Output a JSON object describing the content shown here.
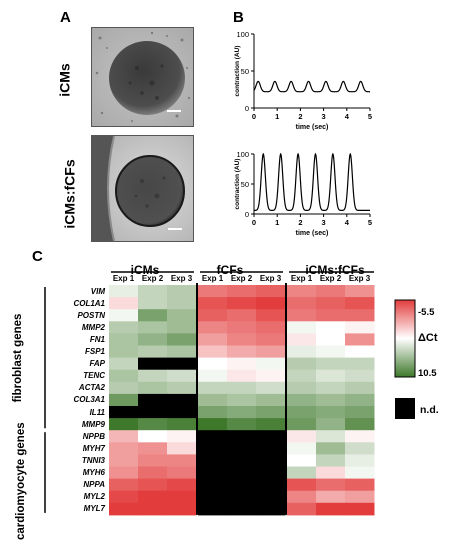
{
  "panel_a": {
    "letter": "A",
    "images": [
      {
        "label": "iCMs"
      },
      {
        "label": "iCMs:fCFs"
      }
    ]
  },
  "panel_b": {
    "letter": "B"
  },
  "panel_c": {
    "letter": "C"
  },
  "chart_data": [
    {
      "type": "line",
      "title": "",
      "xlabel": "time (sec)",
      "ylabel": "contraction (AU)",
      "xlim": [
        0,
        5
      ],
      "ylim": [
        0,
        100
      ],
      "xticks": [
        "0",
        "1",
        "2",
        "3",
        "4",
        "5"
      ],
      "yticks": [
        "0",
        "50",
        "100"
      ],
      "baseline": 22,
      "peak": 36,
      "peak_times": [
        0.18,
        0.9,
        1.6,
        2.35,
        3.1,
        3.85,
        4.6
      ]
    },
    {
      "type": "line",
      "title": "",
      "xlabel": "time (sec)",
      "ylabel": "contraction (AU)",
      "xlim": [
        0,
        5
      ],
      "ylim": [
        0,
        100
      ],
      "xticks": [
        "0",
        "1",
        "2",
        "3",
        "4",
        "5"
      ],
      "yticks": [
        "0",
        "50",
        "100"
      ],
      "baseline": 6,
      "peak": 100,
      "peak_times": [
        0.4,
        1.15,
        1.9,
        2.65,
        3.4,
        4.15
      ]
    },
    {
      "type": "heatmap",
      "title": "",
      "column_groups": [
        "iCMs",
        "fCFs",
        "iCMs:fCFs"
      ],
      "columns": [
        "Exp 1",
        "Exp 2",
        "Exp 3",
        "Exp 1",
        "Exp 2",
        "Exp 3",
        "Exp 1",
        "Exp 2",
        "Exp 3"
      ],
      "row_groups": [
        {
          "name": "fibroblast genes",
          "rows": 12
        },
        {
          "name": "cardiomyocyte genes",
          "rows": 7
        }
      ],
      "rows": [
        "VIM",
        "COL1A1",
        "POSTN",
        "MMP2",
        "FN1",
        "FSP1",
        "FAP",
        "TENC",
        "ACTA2",
        "COL3A1",
        "IL11",
        "MMP9",
        "NPPB",
        "MYH7",
        "TNNI3",
        "MYH6",
        "NPPA",
        "MYL2",
        "MYL7"
      ],
      "value_label": "ΔCt",
      "color_range": [
        -5.5,
        10.5
      ],
      "color_min_label": "-5.5",
      "color_max_label": "10.5",
      "nd_label": "n.d.",
      "values": [
        [
          3.5,
          5.0,
          5.5,
          -3.0,
          -3.5,
          -4.0,
          -2.5,
          -3.0,
          -2.0
        ],
        [
          1.0,
          5.0,
          5.5,
          -4.5,
          -5.0,
          -5.5,
          -3.5,
          -4.0,
          -4.5
        ],
        [
          3.0,
          8.0,
          6.5,
          -4.0,
          -3.5,
          -4.5,
          -3.0,
          -3.5,
          -3.5
        ],
        [
          5.5,
          6.0,
          6.5,
          -2.5,
          -3.0,
          -3.5,
          3.0,
          2.5,
          2.0
        ],
        [
          6.0,
          7.0,
          8.0,
          -1.5,
          -2.5,
          -3.0,
          1.5,
          2.5,
          -2.0
        ],
        [
          6.0,
          5.5,
          6.0,
          0.0,
          -1.0,
          -1.5,
          3.5,
          3.0,
          2.5
        ],
        [
          5.0,
          null,
          null,
          2.5,
          2.0,
          3.0,
          5.5,
          5.0,
          5.0
        ],
        [
          6.0,
          5.0,
          4.5,
          3.0,
          1.5,
          2.0,
          5.0,
          4.0,
          4.5
        ],
        [
          5.5,
          6.0,
          5.5,
          5.0,
          5.0,
          4.5,
          5.5,
          5.0,
          5.5
        ],
        [
          8.5,
          null,
          null,
          6.5,
          6.0,
          6.5,
          7.0,
          6.5,
          7.0
        ],
        [
          null,
          null,
          null,
          8.0,
          7.5,
          8.0,
          8.0,
          7.5,
          8.0
        ],
        [
          10.5,
          9.5,
          10.0,
          10.5,
          9.5,
          10.0,
          8.5,
          7.0,
          9.0
        ],
        [
          -0.5,
          2.5,
          2.0,
          null,
          null,
          null,
          1.5,
          4.0,
          2.0
        ],
        [
          -1.5,
          -2.0,
          1.0,
          null,
          null,
          null,
          3.0,
          6.5,
          4.5
        ],
        [
          -1.5,
          -2.5,
          -2.5,
          null,
          null,
          null,
          2.5,
          5.0,
          3.5
        ],
        [
          -2.0,
          -3.5,
          -3.0,
          null,
          null,
          null,
          5.0,
          1.0,
          3.0
        ],
        [
          -4.0,
          -4.5,
          -5.0,
          null,
          null,
          null,
          -4.5,
          -3.5,
          -4.0
        ],
        [
          -5.0,
          -5.5,
          -5.5,
          null,
          null,
          null,
          -2.5,
          -1.0,
          -1.5
        ],
        [
          -5.5,
          -5.5,
          -5.5,
          null,
          null,
          null,
          -4.0,
          -5.5,
          -5.5
        ]
      ]
    }
  ]
}
